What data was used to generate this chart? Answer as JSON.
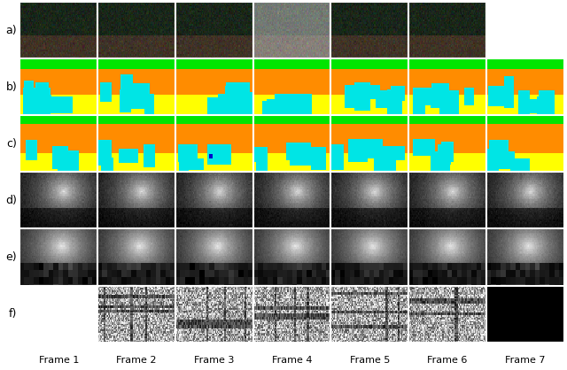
{
  "nrows": 6,
  "ncols": 7,
  "row_labels": [
    "a)",
    "b)",
    "c)",
    "d)",
    "e)",
    "f)"
  ],
  "col_labels": [
    "Frame 1",
    "Frame 2",
    "Frame 3",
    "Frame 4",
    "Frame 5",
    "Frame 6",
    "Frame 7"
  ],
  "background_color": "#ffffff",
  "grid_line_color": "#ffffff",
  "row_label_fontsize": 9,
  "col_label_fontsize": 8,
  "fig_width": 6.4,
  "fig_height": 4.18
}
